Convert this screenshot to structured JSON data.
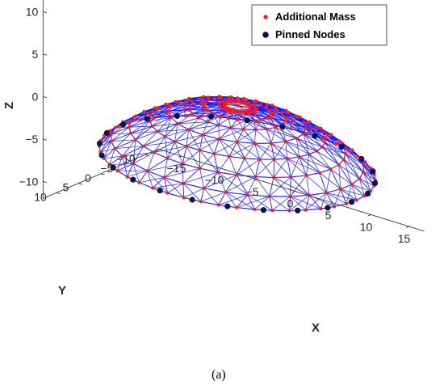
{
  "caption": "(a)",
  "chart_data": {
    "type": "scatter",
    "projection": "3d",
    "structure": "dome lattice with concentric rings and radial members",
    "xlabel": "X",
    "ylabel": "Y",
    "zlabel": "Z",
    "xlim": [
      -18,
      17
    ],
    "ylim": [
      -13,
      13
    ],
    "zlim": [
      -12,
      14
    ],
    "xticks": [
      "−15",
      "−10",
      "−5",
      "0",
      "5",
      "10",
      "15"
    ],
    "yticks": [
      "−10",
      "−5",
      "0",
      "5",
      "10"
    ],
    "zticks": [
      "−10",
      "−5",
      "0",
      "5",
      "10"
    ],
    "xtick_values": [
      -15,
      -10,
      -5,
      0,
      5,
      10,
      15
    ],
    "ytick_values": [
      -10,
      -5,
      0,
      5,
      10
    ],
    "ztick_values": [
      -10,
      -5,
      0,
      5,
      10
    ],
    "grid": false,
    "legend_position": "top-right",
    "series": [
      {
        "name": "Additional Mass",
        "color": "#ff1a1a",
        "marker": "dot-small",
        "rings": [
          {
            "radius": 1.5,
            "z": 0.9,
            "count": 24
          },
          {
            "radius": 2.1,
            "z": 0.85,
            "count": 24
          },
          {
            "radius": 3.8,
            "z": 0.6,
            "count": 24
          },
          {
            "radius": 5.5,
            "z": 0.1,
            "count": 24
          },
          {
            "radius": 7.8,
            "z": -0.7,
            "count": 24
          },
          {
            "radius": 10.0,
            "z": -1.8,
            "count": 36
          },
          {
            "radius": 12.3,
            "z": -3.1,
            "count": 36
          },
          {
            "radius": 14.4,
            "z": -4.6,
            "count": 36
          },
          {
            "radius": 15.7,
            "z": -5.8,
            "count": 48
          }
        ]
      },
      {
        "name": "Pinned Nodes",
        "color": "#0a1450",
        "marker": "dot-large",
        "rings": [
          {
            "radius": 15.7,
            "z": -5.8,
            "count": 48
          }
        ]
      }
    ],
    "member_color": "#1a1aff"
  }
}
